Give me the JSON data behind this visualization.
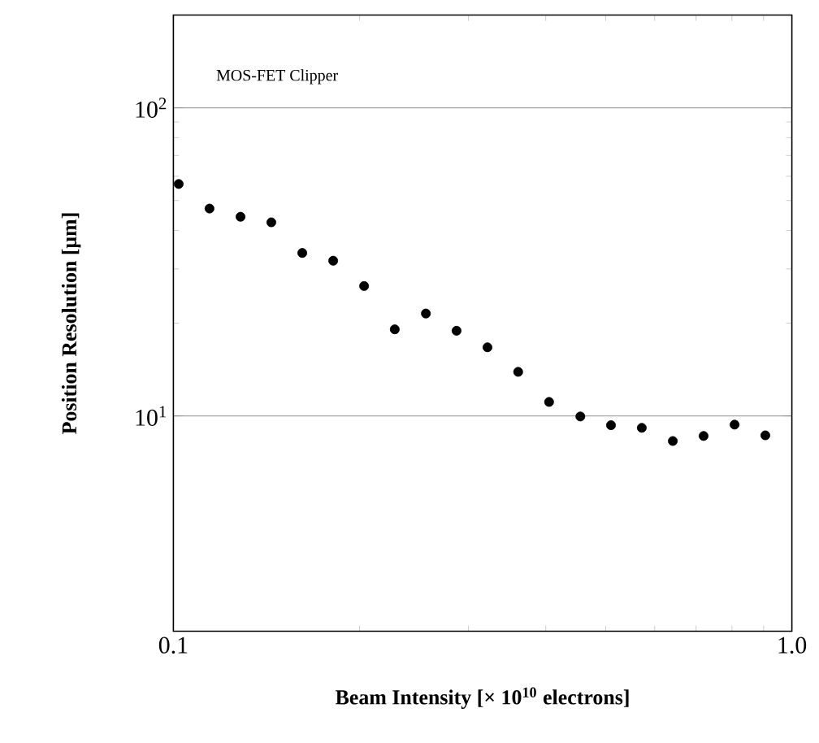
{
  "chart_data": {
    "type": "scatter",
    "xlabel": "Beam Intensity [× 10$^{10}$ electrons]",
    "ylabel": "Position Resolution [μm]",
    "annotations": [
      "MOS-FET Clipper"
    ],
    "x": [
      0.102,
      0.1144,
      0.1284,
      0.144,
      0.1616,
      0.1813,
      0.2034,
      0.228,
      0.256,
      0.287,
      0.322,
      0.361,
      0.405,
      0.455,
      0.51,
      0.572,
      0.642,
      0.72,
      0.808,
      0.906
    ],
    "values": [
      56.6,
      47.1,
      44.3,
      42.5,
      33.8,
      31.9,
      26.4,
      19.1,
      21.5,
      18.9,
      16.7,
      13.9,
      11.1,
      9.96,
      9.33,
      9.15,
      8.29,
      8.61,
      9.37,
      8.65
    ],
    "color": "#000000",
    "log": "xy",
    "grid": "y",
    "xlim": [
      0.1,
      1.0
    ],
    "ylim": [
      2,
      200
    ],
    "xticks": [
      0.1,
      {
        "value": 1.0,
        "label": "1.0"
      }
    ],
    "yticks": [
      {
        "value": 10,
        "label": "10$^{1}$"
      },
      {
        "value": 100,
        "label": "10$^{2}$"
      }
    ]
  }
}
